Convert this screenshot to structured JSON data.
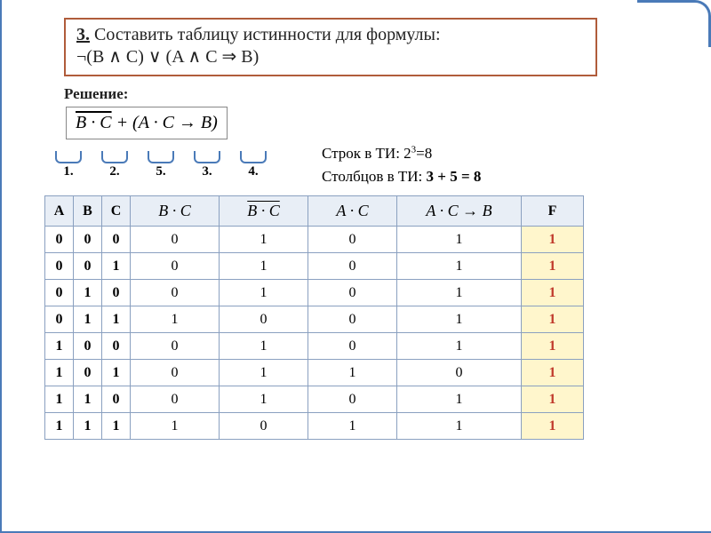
{
  "task": {
    "num": "3.",
    "line1_rest": " Составить таблицу истинности для формулы:",
    "line2": "¬(B ∧ C) ∨ (A ∧ C ⇒ B)"
  },
  "reshenie": "Решение:",
  "formula": {
    "bar": "B · C",
    "rest": " + (A · C → B)"
  },
  "steps": [
    "1.",
    "2.",
    "5.",
    "3.",
    "4."
  ],
  "info": {
    "rows_label": "Строк в ТИ: ",
    "rows_calc": "2",
    "rows_exp": "3",
    "rows_eq": "=8",
    "cols_label": "Столбцов в ТИ: ",
    "cols_calc": "3 + 5 = 8"
  },
  "table": {
    "headers": {
      "a": "A",
      "b": "B",
      "c": "C",
      "e1": "B · C",
      "e2_bar": "B · C",
      "e3": "A · C",
      "e4": "A · C → B",
      "f": "F"
    },
    "rows": [
      {
        "a": "0",
        "b": "0",
        "c": "0",
        "e1": "0",
        "e2": "1",
        "e3": "0",
        "e4": "1",
        "f": "1"
      },
      {
        "a": "0",
        "b": "0",
        "c": "1",
        "e1": "0",
        "e2": "1",
        "e3": "0",
        "e4": "1",
        "f": "1"
      },
      {
        "a": "0",
        "b": "1",
        "c": "0",
        "e1": "0",
        "e2": "1",
        "e3": "0",
        "e4": "1",
        "f": "1"
      },
      {
        "a": "0",
        "b": "1",
        "c": "1",
        "e1": "1",
        "e2": "0",
        "e3": "0",
        "e4": "1",
        "f": "1"
      },
      {
        "a": "1",
        "b": "0",
        "c": "0",
        "e1": "0",
        "e2": "1",
        "e3": "0",
        "e4": "1",
        "f": "1"
      },
      {
        "a": "1",
        "b": "0",
        "c": "1",
        "e1": "0",
        "e2": "1",
        "e3": "1",
        "e4": "0",
        "f": "1"
      },
      {
        "a": "1",
        "b": "1",
        "c": "0",
        "e1": "0",
        "e2": "1",
        "e3": "0",
        "e4": "1",
        "f": "1"
      },
      {
        "a": "1",
        "b": "1",
        "c": "1",
        "e1": "1",
        "e2": "0",
        "e3": "1",
        "e4": "1",
        "f": "1"
      }
    ]
  }
}
